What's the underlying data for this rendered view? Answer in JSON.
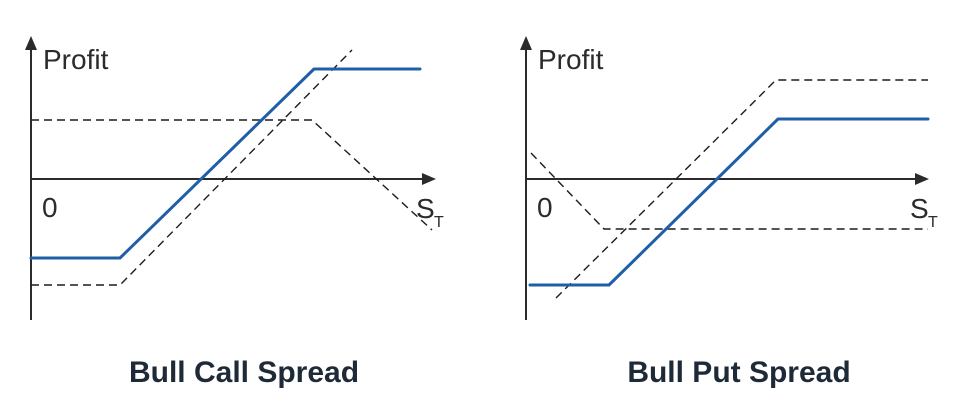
{
  "diagrams": [
    {
      "title": "Bull Call Spread",
      "y_axis_label": "Profit",
      "origin_label": "0",
      "x_axis_label": "S",
      "x_axis_subscript": "T",
      "colors": {
        "payoff": "#1f5fa8",
        "legs": "#1c1c1c",
        "axis": "#2b2b2b"
      }
    },
    {
      "title": "Bull Put Spread",
      "y_axis_label": "Profit",
      "origin_label": "0",
      "x_axis_label": "S",
      "x_axis_subscript": "T",
      "colors": {
        "payoff": "#1f5fa8",
        "legs": "#1c1c1c",
        "axis": "#2b2b2b"
      }
    }
  ]
}
